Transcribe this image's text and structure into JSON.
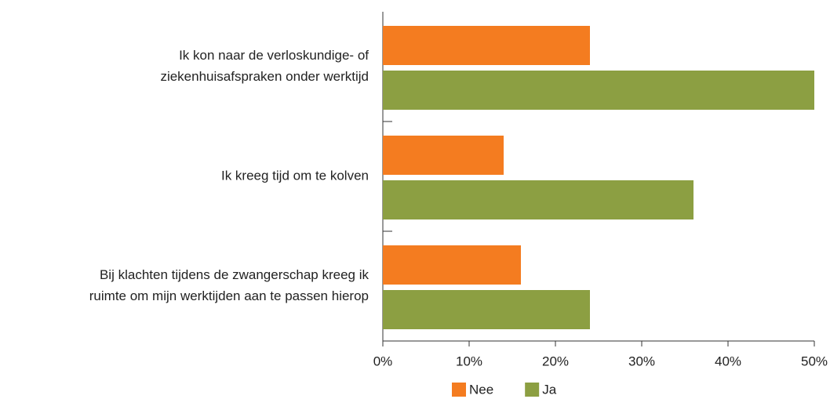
{
  "chart_data": {
    "type": "bar",
    "orientation": "horizontal",
    "categories": [
      [
        "Ik kon naar de verloskundige- of",
        "ziekenhuisafspraken onder werktijd"
      ],
      [
        "Ik kreeg tijd om te kolven"
      ],
      [
        "Bij klachten tijdens de zwangerschap kreeg ik",
        "ruimte om mijn werktijden aan te passen hierop"
      ]
    ],
    "series": [
      {
        "name": "Nee",
        "color": "#f47c20",
        "values": [
          24,
          14,
          16
        ]
      },
      {
        "name": "Ja",
        "color": "#8c9f42",
        "values": [
          50,
          36,
          24
        ]
      }
    ],
    "xlim": [
      0,
      50
    ],
    "xticks": [
      {
        "value": 0,
        "label": "0%"
      },
      {
        "value": 10,
        "label": "10%"
      },
      {
        "value": 20,
        "label": "20%"
      },
      {
        "value": 30,
        "label": "30%"
      },
      {
        "value": 40,
        "label": "40%"
      },
      {
        "value": 50,
        "label": "50%"
      }
    ],
    "legend": "bottom"
  }
}
